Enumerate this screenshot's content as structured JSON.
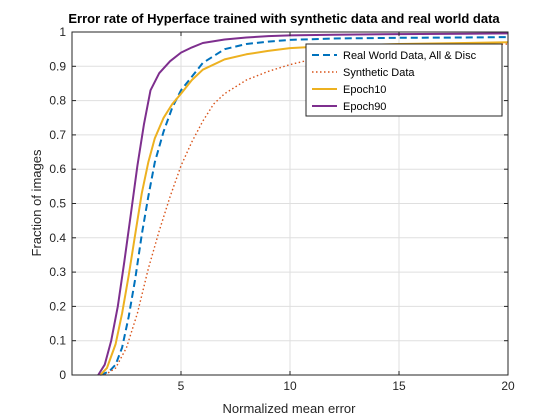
{
  "chart_data": {
    "type": "line",
    "title": "Error rate of Hyperface trained with synthetic data and real world data",
    "xlabel": "Normalized mean error",
    "ylabel": "Fraction of images",
    "xlim": [
      0,
      20
    ],
    "ylim": [
      0,
      1
    ],
    "xticks": [
      5,
      10,
      15,
      20
    ],
    "xtick_labels": [
      "5",
      "10",
      "15",
      "20"
    ],
    "yticks": [
      0,
      0.1,
      0.2,
      0.3,
      0.4,
      0.5,
      0.6,
      0.7,
      0.8,
      0.9,
      1
    ],
    "ytick_labels": [
      "0",
      "0.1",
      "0.2",
      "0.3",
      "0.4",
      "0.5",
      "0.6",
      "0.7",
      "0.8",
      "0.9",
      "1"
    ],
    "grid": true,
    "legend_position": "top-right",
    "series": [
      {
        "name": "Real World Data, All & Disc",
        "color": "#0072BD",
        "dash": "dashed",
        "x": [
          1.3,
          1.7,
          2.0,
          2.3,
          2.6,
          2.9,
          3.2,
          3.5,
          3.8,
          4.2,
          4.6,
          5.0,
          5.5,
          6.0,
          7.0,
          8.0,
          9.0,
          10.0,
          12.0,
          15.0,
          18.0,
          20.0
        ],
        "y": [
          0.0,
          0.01,
          0.03,
          0.08,
          0.17,
          0.28,
          0.41,
          0.52,
          0.62,
          0.71,
          0.78,
          0.83,
          0.87,
          0.91,
          0.95,
          0.965,
          0.972,
          0.977,
          0.981,
          0.983,
          0.984,
          0.985
        ]
      },
      {
        "name": "Synthetic Data",
        "color": "#D95319",
        "dash": "dotted",
        "x": [
          1.5,
          2.0,
          2.5,
          3.0,
          3.5,
          4.0,
          4.5,
          5.0,
          5.5,
          6.0,
          6.5,
          7.0,
          8.0,
          9.0,
          10.0,
          11.0,
          12.0,
          14.0,
          16.0,
          18.0,
          20.0
        ],
        "y": [
          0.0,
          0.02,
          0.08,
          0.18,
          0.31,
          0.42,
          0.52,
          0.61,
          0.68,
          0.74,
          0.79,
          0.82,
          0.86,
          0.885,
          0.905,
          0.92,
          0.93,
          0.945,
          0.955,
          0.962,
          0.965
        ]
      },
      {
        "name": "Epoch10",
        "color": "#EDB120",
        "dash": "solid",
        "x": [
          1.3,
          1.6,
          2.0,
          2.3,
          2.6,
          2.9,
          3.2,
          3.5,
          3.8,
          4.2,
          4.6,
          5.0,
          5.5,
          6.0,
          7.0,
          8.0,
          9.0,
          10.0,
          12.0,
          15.0,
          18.0,
          20.0
        ],
        "y": [
          0.0,
          0.02,
          0.09,
          0.18,
          0.29,
          0.41,
          0.53,
          0.62,
          0.69,
          0.75,
          0.79,
          0.82,
          0.86,
          0.89,
          0.92,
          0.935,
          0.945,
          0.953,
          0.96,
          0.965,
          0.968,
          0.97
        ]
      },
      {
        "name": "Epoch90",
        "color": "#7E2F8E",
        "dash": "solid",
        "x": [
          1.2,
          1.5,
          1.8,
          2.1,
          2.4,
          2.7,
          3.0,
          3.3,
          3.6,
          4.0,
          4.5,
          5.0,
          5.5,
          6.0,
          7.0,
          8.0,
          9.0,
          10.0,
          12.0,
          15.0,
          18.0,
          20.0
        ],
        "y": [
          0.0,
          0.03,
          0.1,
          0.2,
          0.33,
          0.47,
          0.61,
          0.73,
          0.83,
          0.88,
          0.915,
          0.94,
          0.955,
          0.968,
          0.978,
          0.984,
          0.988,
          0.99,
          0.992,
          0.994,
          0.995,
          0.996
        ]
      }
    ]
  }
}
